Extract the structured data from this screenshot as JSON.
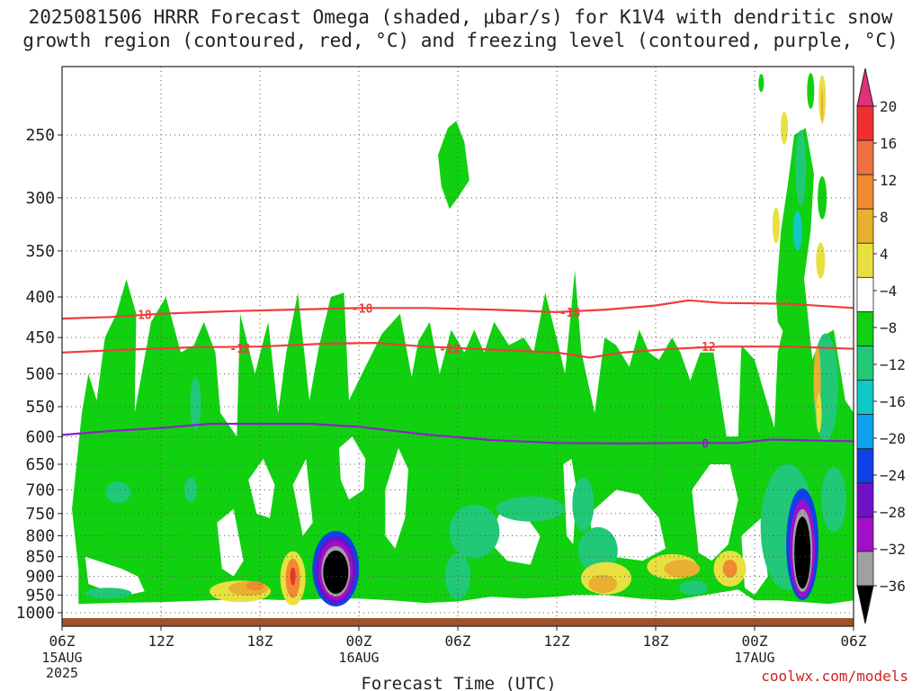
{
  "title": {
    "line1": "2025081506 HRRR Forecast Omega (shaded, μbar/s) for K1V4 with dendritic snow",
    "line2": "growth region (contoured, red, °C) and freezing level (contoured, purple, °C)"
  },
  "credit": "coolwx.com/models",
  "chart_data": {
    "type": "heatmap",
    "title": "2025081506 HRRR Forecast Omega (shaded, μbar/s) for K1V4 with dendritic snow growth region (contoured, red, °C) and freezing level (contoured, purple, °C)",
    "xlabel": "Forecast Time (UTC)",
    "ylabel": "",
    "x_ticks": [
      {
        "label": "06Z",
        "sub": "15AUG",
        "sub2": "2025",
        "hour": 0
      },
      {
        "label": "12Z",
        "hour": 6
      },
      {
        "label": "18Z",
        "hour": 12
      },
      {
        "label": "00Z",
        "sub": "16AUG",
        "hour": 18
      },
      {
        "label": "06Z",
        "hour": 24
      },
      {
        "label": "12Z",
        "hour": 30
      },
      {
        "label": "18Z",
        "hour": 36
      },
      {
        "label": "00Z",
        "sub": "17AUG",
        "hour": 42
      },
      {
        "label": "06Z",
        "hour": 48
      }
    ],
    "xlim_hours": [
      0,
      48
    ],
    "y_scale": "pressure (log), hPa",
    "y_ticks": [
      250,
      300,
      350,
      400,
      450,
      500,
      550,
      600,
      650,
      700,
      750,
      800,
      850,
      900,
      950,
      1000
    ],
    "ylim": [
      1040,
      205
    ],
    "grid": true,
    "colorbar": {
      "labels": [
        "20",
        "16",
        "12",
        "8",
        "4",
        "−4",
        "−8",
        "−12",
        "−16",
        "−20",
        "−24",
        "−28",
        "−32",
        "−36"
      ],
      "colors": [
        "#e0307a",
        "#f03030",
        "#f07040",
        "#f08a30",
        "#e8b030",
        "#e8e040",
        "#ffffff",
        "#10d010",
        "#20c878",
        "#10c8c8",
        "#10a0f0",
        "#1040e8",
        "#7010c8",
        "#a010c8",
        "#a0a0a0",
        "#000000"
      ]
    },
    "contours": [
      {
        "name": "-18",
        "color": "#f03c3c",
        "points": [
          [
            0,
            426
          ],
          [
            3,
            424
          ],
          [
            6,
            420
          ],
          [
            10,
            417
          ],
          [
            14,
            415
          ],
          [
            18,
            413
          ],
          [
            22,
            413
          ],
          [
            26,
            415
          ],
          [
            30,
            418
          ],
          [
            33,
            415
          ],
          [
            36,
            410
          ],
          [
            38,
            404
          ],
          [
            40,
            407
          ],
          [
            44,
            408
          ],
          [
            48,
            413
          ]
        ]
      },
      {
        "name": "-12",
        "color": "#f03c3c",
        "points": [
          [
            0,
            470
          ],
          [
            4,
            466
          ],
          [
            8,
            463
          ],
          [
            12,
            462
          ],
          [
            16,
            458
          ],
          [
            19,
            457
          ],
          [
            22,
            462
          ],
          [
            26,
            466
          ],
          [
            30,
            470
          ],
          [
            32,
            477
          ],
          [
            34,
            470
          ],
          [
            37,
            465
          ],
          [
            40,
            462
          ],
          [
            44,
            462
          ],
          [
            48,
            465
          ]
        ]
      },
      {
        "name": "0",
        "color": "#9020c8",
        "points": [
          [
            0,
            597
          ],
          [
            3,
            590
          ],
          [
            6,
            585
          ],
          [
            9,
            578
          ],
          [
            12,
            578
          ],
          [
            15,
            578
          ],
          [
            18,
            583
          ],
          [
            22,
            596
          ],
          [
            26,
            606
          ],
          [
            30,
            611
          ],
          [
            34,
            612
          ],
          [
            38,
            611
          ],
          [
            41,
            611
          ],
          [
            43,
            605
          ],
          [
            46,
            607
          ],
          [
            48,
            608
          ]
        ]
      }
    ],
    "contour_labels": [
      {
        "text": "-18",
        "hour": 4.8,
        "p": 421
      },
      {
        "text": "-18",
        "hour": 18.2,
        "p": 413
      },
      {
        "text": "-18",
        "hour": 30.8,
        "p": 418
      },
      {
        "text": "-12",
        "hour": 10.8,
        "p": 464
      },
      {
        "text": "-12",
        "hour": 23.5,
        "p": 465
      },
      {
        "text": "-12",
        "hour": 39.0,
        "p": 462
      },
      {
        "text": "0",
        "hour": 39.0,
        "p": 611
      }
    ],
    "omega_features": [
      {
        "hour": 1.2,
        "p": 700,
        "value": -8
      },
      {
        "hour": 6.3,
        "p": 600,
        "value": -8
      },
      {
        "hour": 8.4,
        "p": 550,
        "value": -12
      },
      {
        "hour": 11.0,
        "p": 940,
        "value": 12
      },
      {
        "hour": 12.3,
        "p": 925,
        "value": 16
      },
      {
        "hour": 15.0,
        "p": 905,
        "value": 16
      },
      {
        "hour": 16.4,
        "p": 890,
        "value": -36
      },
      {
        "hour": 24.0,
        "p": 260,
        "value": -8
      },
      {
        "hour": 25.0,
        "p": 880,
        "value": -12
      },
      {
        "hour": 33.0,
        "p": 890,
        "value": 4
      },
      {
        "hour": 37.0,
        "p": 870,
        "value": 8
      },
      {
        "hour": 44.5,
        "p": 470,
        "value": -12
      },
      {
        "hour": 43.0,
        "p": 900,
        "value": -12
      },
      {
        "hour": 45.3,
        "p": 840,
        "value": -36
      },
      {
        "hour": 43.5,
        "p": 270,
        "value": 8
      },
      {
        "hour": 46.0,
        "p": 540,
        "value": 8
      }
    ]
  }
}
